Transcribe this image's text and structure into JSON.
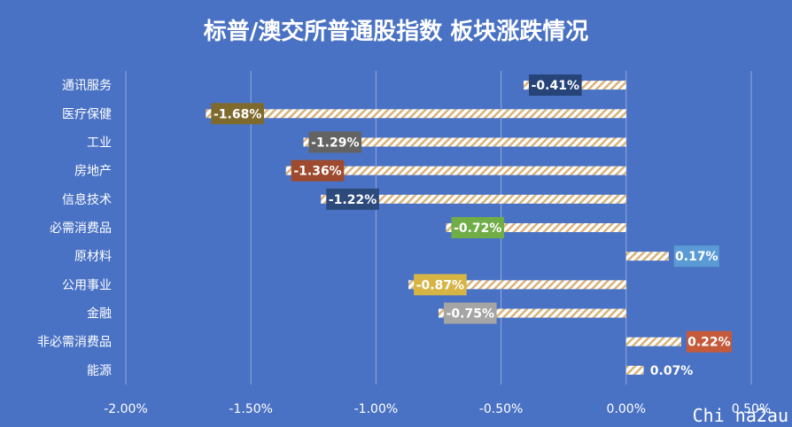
{
  "chart_data": {
    "type": "bar",
    "orientation": "horizontal",
    "title": "标普/澳交所普通股指数 板块涨跌情况",
    "categories": [
      "通讯服务",
      "医疗保健",
      "工业",
      "房地产",
      "信息技术",
      "必需消费品",
      "原材料",
      "公用事业",
      "金融",
      "非必需消费品",
      "能源"
    ],
    "values": [
      -0.41,
      -1.68,
      -1.29,
      -1.36,
      -1.22,
      -0.72,
      0.17,
      -0.87,
      -0.75,
      0.22,
      0.07
    ],
    "data_labels": [
      "-0.41%",
      "-1.68%",
      "-1.29%",
      "-1.36%",
      "-1.22%",
      "-0.72%",
      "0.17%",
      "-0.87%",
      "-0.75%",
      "0.22%",
      "0.07%"
    ],
    "label_colors": [
      "#264478",
      "#7f6a2e",
      "#636363",
      "#9e4a2e",
      "#2d4a7c",
      "#70ad47",
      "#5b9bd5",
      "#d6b545",
      "#a5a5a5",
      "#c55a3a",
      "#4a72c4"
    ],
    "x_ticks": [
      -2.0,
      -1.5,
      -1.0,
      -0.5,
      0.0,
      0.5
    ],
    "x_tick_labels": [
      "-2.00%",
      "-1.50%",
      "-1.00%",
      "-0.50%",
      "0.00%",
      "0.50%"
    ],
    "xlim": [
      -2.0,
      0.5
    ],
    "grid": true,
    "legend": "none",
    "bar_style": "hatched white/orange",
    "background": "#4a72c4"
  },
  "watermark": "Chi na2au"
}
